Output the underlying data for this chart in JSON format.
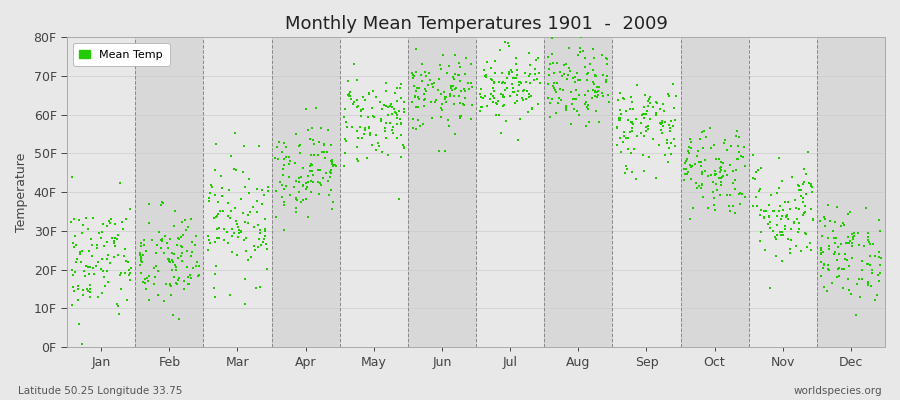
{
  "title": "Monthly Mean Temperatures 1901  -  2009",
  "ylabel": "Temperature",
  "xlabel_bottom_left": "Latitude 50.25 Longitude 33.75",
  "xlabel_bottom_right": "worldspecies.org",
  "ytick_labels": [
    "0F",
    "10F",
    "20F",
    "30F",
    "40F",
    "50F",
    "60F",
    "70F",
    "80F"
  ],
  "ytick_values": [
    0,
    10,
    20,
    30,
    40,
    50,
    60,
    70,
    80
  ],
  "months": [
    "Jan",
    "Feb",
    "Mar",
    "Apr",
    "May",
    "Jun",
    "Jul",
    "Aug",
    "Sep",
    "Oct",
    "Nov",
    "Dec"
  ],
  "dot_color": "#22cc00",
  "background_color": "#e8e8e8",
  "plot_bg_color": "#e8e8e8",
  "band_color_light": "#e8e8e8",
  "band_color_dark": "#d8d8d8",
  "legend_label": "Mean Temp",
  "monthly_means": [
    22,
    22,
    33,
    46,
    59,
    65,
    68,
    67,
    57,
    46,
    35,
    24
  ],
  "monthly_spreads": [
    8,
    7,
    8,
    6,
    6,
    5,
    5,
    5,
    6,
    6,
    7,
    6
  ],
  "n_years": 109,
  "seed": 42
}
